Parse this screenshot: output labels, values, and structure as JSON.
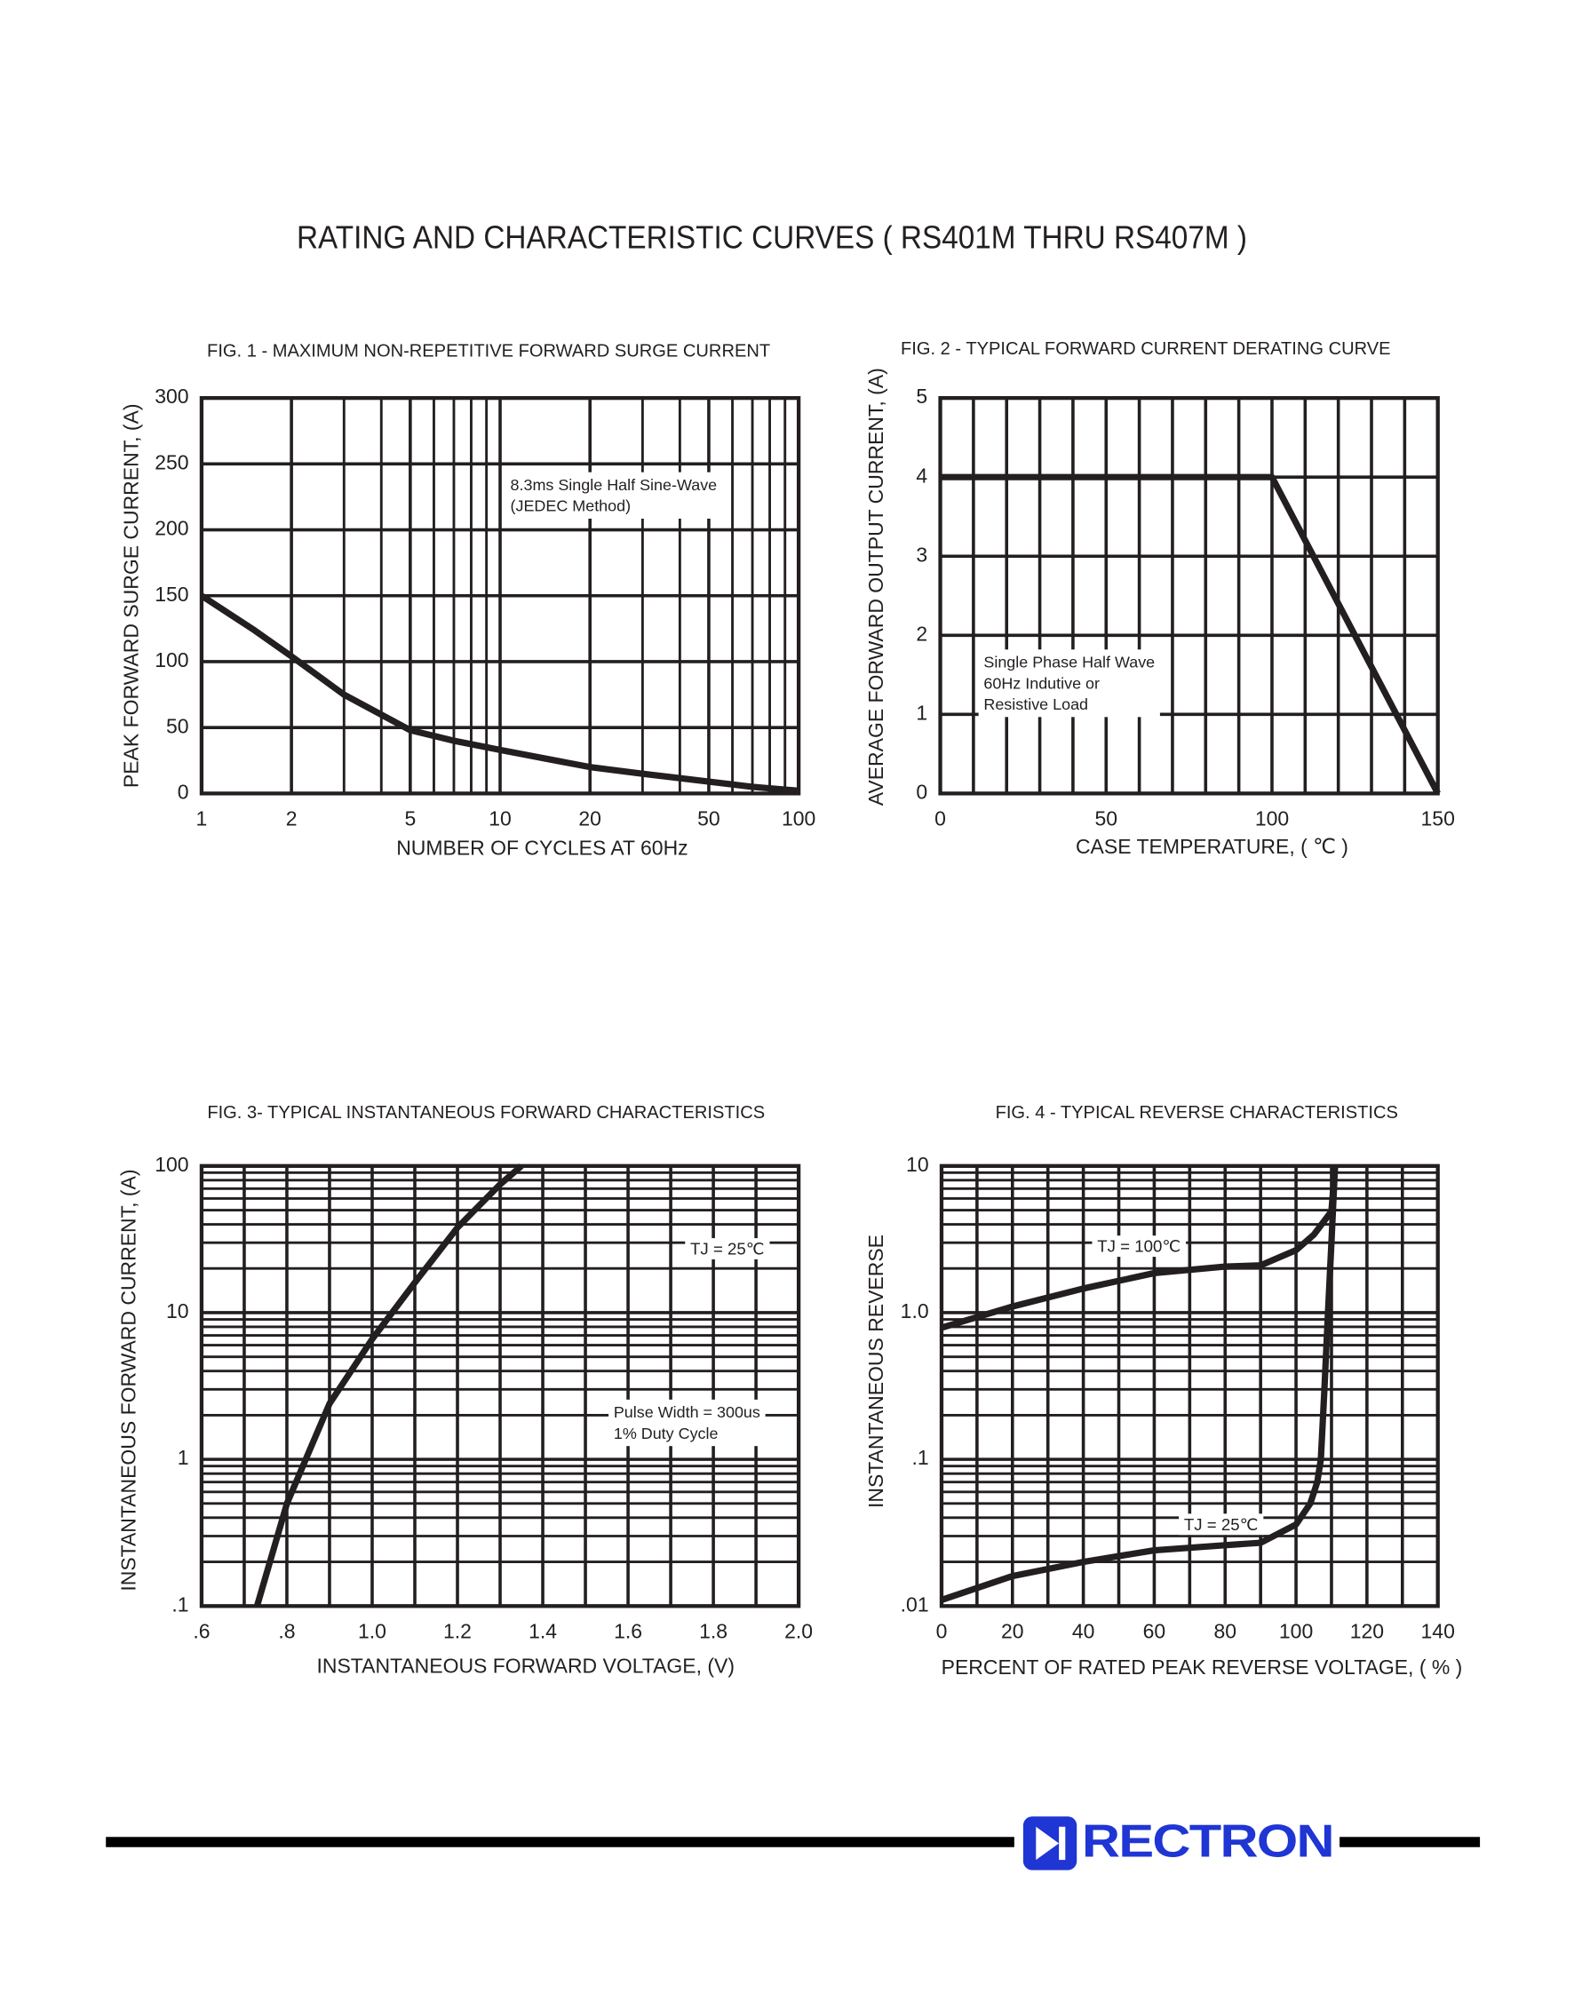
{
  "title": "RATING AND CHARACTERISTIC CURVES ( RS401M THRU RS407M )",
  "chart_data": [
    {
      "type": "line",
      "title": "FIG. 1 - MAXIMUM NON-REPETITIVE FORWARD SURGE CURRENT",
      "x_label": "NUMBER OF CYCLES AT 60Hz",
      "y_label": "PEAK FORWARD SURGE CURRENT, (A)",
      "xscale": "log",
      "yscale": "linear",
      "grid": true,
      "xlim": [
        1,
        100
      ],
      "xticks": [
        1,
        2,
        5,
        10,
        20,
        50,
        100
      ],
      "ylim": [
        0,
        300
      ],
      "yticks": [
        0,
        50,
        100,
        150,
        200,
        250,
        300
      ],
      "series": [
        {
          "color": "#231f20",
          "x": [
            1,
            1.5,
            2,
            3,
            5,
            7,
            10,
            20,
            30,
            50,
            70,
            100
          ],
          "values": [
            150,
            124,
            104,
            75,
            48,
            40,
            33,
            20,
            15,
            9,
            5,
            2
          ]
        }
      ],
      "annotations": [
        {
          "lines": [
            "8.3ms Single Half Sine-Wave",
            "(JEDEC Method)"
          ]
        }
      ]
    },
    {
      "type": "line",
      "title": "FIG. 2 - TYPICAL FORWARD CURRENT DERATING CURVE",
      "x_label": "CASE TEMPERATURE, ( ℃ )",
      "y_label": "AVERAGE FORWARD OUTPUT CURRENT, (A)",
      "xscale": "linear",
      "yscale": "linear",
      "grid": true,
      "xlim": [
        0,
        150
      ],
      "xticks": [
        0,
        50,
        100,
        150
      ],
      "x_minor_ticks": [
        10,
        20,
        30,
        40,
        60,
        70,
        80,
        90,
        110,
        120,
        130,
        140
      ],
      "ylim": [
        0,
        5
      ],
      "yticks": [
        0,
        1,
        2,
        3,
        4,
        5
      ],
      "series": [
        {
          "color": "#231f20",
          "x": [
            0,
            100,
            150
          ],
          "values": [
            4,
            4,
            0
          ]
        }
      ],
      "annotations": [
        {
          "lines": [
            "Single Phase Half Wave",
            "60Hz Indutive or",
            "Resistive Load"
          ]
        }
      ]
    },
    {
      "type": "line",
      "title": "FIG. 3- TYPICAL INSTANTANEOUS FORWARD CHARACTERISTICS",
      "x_label": "INSTANTANEOUS FORWARD VOLTAGE, (V)",
      "y_label": "INSTANTANEOUS FORWARD CURRENT, (A)",
      "xscale": "linear",
      "yscale": "log",
      "grid": true,
      "xlim": [
        0.6,
        2.0
      ],
      "xticks": [
        {
          "value": 0.6,
          "label": ".6"
        },
        {
          "value": 0.8,
          "label": ".8"
        },
        {
          "value": 1.0,
          "label": "1.0"
        },
        1.2,
        1.4,
        1.6,
        1.8,
        {
          "value": 2.0,
          "label": "2.0"
        }
      ],
      "x_minor_ticks": [
        0.7,
        0.9,
        1.1,
        1.3,
        1.5,
        1.7,
        1.9
      ],
      "ylim": [
        0.1,
        100
      ],
      "yticks": [
        {
          "value": 0.1,
          "label": ".1"
        },
        1,
        10,
        100
      ],
      "series": [
        {
          "name": "TJ = 25℃",
          "color": "#231f20",
          "x": [
            0.73,
            0.8,
            0.9,
            1.0,
            1.1,
            1.2,
            1.3,
            1.35
          ],
          "values": [
            0.1,
            0.5,
            2.4,
            6.6,
            16,
            38,
            75,
            100
          ]
        }
      ],
      "annotations": [
        {
          "lines": [
            "Pulse Width = 300us",
            "1% Duty Cycle"
          ]
        }
      ]
    },
    {
      "type": "line",
      "title": "FIG. 4 - TYPICAL REVERSE CHARACTERISTICS",
      "x_label": "PERCENT OF RATED PEAK REVERSE VOLTAGE, ( % )",
      "y_label": "INSTANTANEOUS REVERSE",
      "xscale": "linear",
      "yscale": "log",
      "grid": true,
      "xlim": [
        0,
        140
      ],
      "xticks": [
        0,
        20,
        40,
        60,
        80,
        100,
        120,
        140
      ],
      "x_minor_ticks": [
        10,
        30,
        50,
        70,
        90,
        110,
        130
      ],
      "ylim": [
        0.01,
        10
      ],
      "yticks": [
        {
          "value": 0.01,
          "label": ".01"
        },
        {
          "value": 0.1,
          "label": ".1"
        },
        {
          "value": 1,
          "label": "1.0"
        },
        10
      ],
      "series": [
        {
          "name": "TJ = 100℃",
          "color": "#231f20",
          "x": [
            0,
            20,
            40,
            60,
            80,
            90,
            100,
            105,
            110,
            111
          ],
          "values": [
            0.79,
            1.1,
            1.46,
            1.86,
            2.06,
            2.1,
            2.67,
            3.4,
            4.9,
            10
          ]
        },
        {
          "name": "TJ = 25℃",
          "color": "#231f20",
          "x": [
            0,
            20,
            40,
            60,
            80,
            90,
            100,
            104,
            106,
            107,
            108,
            109,
            110,
            111
          ],
          "values": [
            0.011,
            0.016,
            0.02,
            0.024,
            0.026,
            0.027,
            0.036,
            0.05,
            0.07,
            0.1,
            0.3,
            1,
            3,
            10
          ]
        }
      ],
      "annotations": []
    }
  ],
  "footer": {
    "brand": "RECTRON"
  }
}
